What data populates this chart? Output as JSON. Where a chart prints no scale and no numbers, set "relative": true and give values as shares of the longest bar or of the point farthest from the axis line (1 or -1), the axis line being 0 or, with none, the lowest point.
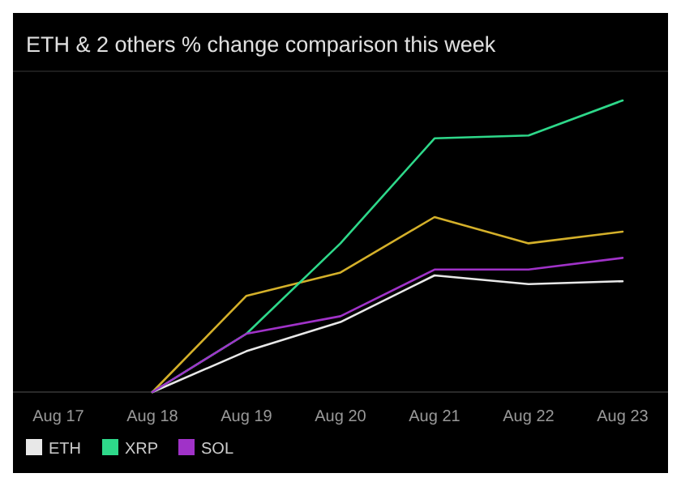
{
  "chart_data": {
    "type": "line",
    "title": "ETH & 2 others % change comparison this week",
    "relative": true,
    "categories": [
      "Aug 17",
      "Aug 18",
      "Aug 19",
      "Aug 20",
      "Aug 21",
      "Aug 22",
      "Aug 23"
    ],
    "series": [
      {
        "color": "#d4b02a",
        "values": [
          null,
          0,
          0.33,
          0.41,
          0.6,
          0.51,
          0.55
        ]
      },
      {
        "name": "ETH",
        "color": "#e8e8e8",
        "values": [
          null,
          0,
          0.14,
          0.24,
          0.4,
          0.37,
          0.38
        ]
      },
      {
        "name": "XRP",
        "color": "#2ed88a",
        "values": [
          null,
          0,
          0.2,
          0.51,
          0.87,
          0.88,
          1
        ]
      },
      {
        "name": "SOL",
        "color": "#a032c8",
        "values": [
          null,
          0,
          0.2,
          0.26,
          0.42,
          0.42,
          0.46
        ]
      }
    ],
    "grid": false,
    "legend": "bottom left",
    "marker": "none",
    "line_style": "solid"
  }
}
